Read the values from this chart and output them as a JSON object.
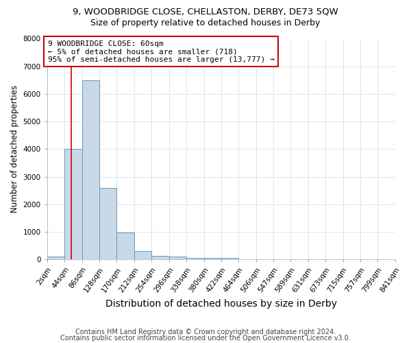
{
  "title": "9, WOODBRIDGE CLOSE, CHELLASTON, DERBY, DE73 5QW",
  "subtitle": "Size of property relative to detached houses in Derby",
  "xlabel": "Distribution of detached houses by size in Derby",
  "ylabel": "Number of detached properties",
  "footnote1": "Contains HM Land Registry data © Crown copyright and database right 2024.",
  "footnote2": "Contains public sector information licensed under the Open Government Licence v3.0.",
  "bin_edges": [
    2,
    44,
    86,
    128,
    170,
    212,
    254,
    296,
    338,
    380,
    422,
    464,
    506,
    547,
    589,
    631,
    673,
    715,
    757,
    799,
    841
  ],
  "bar_heights": [
    100,
    4000,
    6500,
    2600,
    970,
    320,
    130,
    100,
    70,
    50,
    50,
    0,
    0,
    0,
    0,
    0,
    0,
    0,
    0,
    0
  ],
  "bar_color": "#c9d9e8",
  "bar_edge_color": "#6699bb",
  "property_size": 60,
  "red_line_color": "#cc0000",
  "annotation_line1": "9 WOODBRIDGE CLOSE: 60sqm",
  "annotation_line2": "← 5% of detached houses are smaller (718)",
  "annotation_line3": "95% of semi-detached houses are larger (13,777) →",
  "annotation_box_color": "#ffffff",
  "annotation_box_edge_color": "#cc0000",
  "ylim": [
    0,
    8000
  ],
  "yticks": [
    0,
    1000,
    2000,
    3000,
    4000,
    5000,
    6000,
    7000,
    8000
  ],
  "tick_labels": [
    "2sqm",
    "44sqm",
    "86sqm",
    "128sqm",
    "170sqm",
    "212sqm",
    "254sqm",
    "296sqm",
    "338sqm",
    "380sqm",
    "422sqm",
    "464sqm",
    "506sqm",
    "547sqm",
    "589sqm",
    "631sqm",
    "673sqm",
    "715sqm",
    "757sqm",
    "799sqm",
    "841sqm"
  ],
  "grid_color": "#d8e0e8",
  "background_color": "#ffffff",
  "title_fontsize": 9.5,
  "subtitle_fontsize": 9,
  "xlabel_fontsize": 10,
  "ylabel_fontsize": 8.5,
  "tick_fontsize": 7.5,
  "annotation_fontsize": 8,
  "footnote_fontsize": 7
}
